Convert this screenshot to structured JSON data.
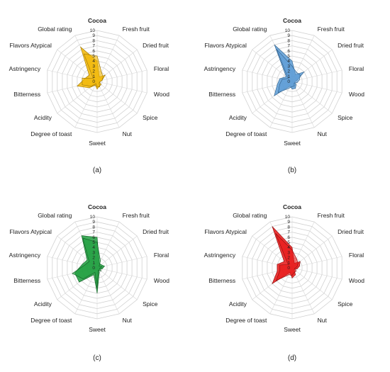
{
  "attributes": [
    "Cocoa",
    "Fresh fruit",
    "Dried fruit",
    "Floral",
    "Wood",
    "Spice",
    "Nut",
    "Sweet",
    "Degree  of toast",
    "Acidity",
    "Bitterness",
    "Astringency",
    "Flavors Atypical",
    "Global  rating"
  ],
  "ticks": [
    "0",
    "1",
    "2",
    "3",
    "4",
    "5",
    "6",
    "7",
    "8",
    "9",
    "10"
  ],
  "chart_data": [
    {
      "type": "radar",
      "panel_label": "(a)",
      "color": "#F2B705",
      "edge_color": "#9c7300",
      "rmax": 10,
      "categories": [
        "Cocoa",
        "Fresh fruit",
        "Dried fruit",
        "Floral",
        "Wood",
        "Spice",
        "Nut",
        "Sweet",
        "Degree  of toast",
        "Acidity",
        "Bitterness",
        "Astringency",
        "Flavors Atypical",
        "Global  rating"
      ],
      "series": [
        {
          "values": [
            4,
            1,
            2,
            1,
            0.5,
            1,
            1,
            1.5,
            0.8,
            2,
            4,
            2.5,
            2,
            7.5
          ]
        },
        {
          "values": [
            5,
            2,
            1.5,
            1,
            0.5,
            0.5,
            1.2,
            1,
            0.5,
            1.5,
            3,
            3,
            1,
            6
          ]
        }
      ]
    },
    {
      "type": "radar",
      "panel_label": "(b)",
      "color": "#5B9BD5",
      "edge_color": "#2f5f8a",
      "rmax": 10,
      "categories": [
        "Cocoa",
        "Fresh fruit",
        "Dried fruit",
        "Floral",
        "Wood",
        "Spice",
        "Nut",
        "Sweet",
        "Degree  of toast",
        "Acidity",
        "Bitterness",
        "Astringency",
        "Flavors Atypical",
        "Global  rating"
      ],
      "series": [
        {
          "values": [
            4,
            1.5,
            3,
            1,
            0.5,
            1,
            1.5,
            1.5,
            1,
            4.5,
            3,
            2.5,
            1.5,
            8
          ]
        },
        {
          "values": [
            3,
            2,
            2,
            1.5,
            1,
            0.5,
            1,
            1,
            1.5,
            3.5,
            2.5,
            2,
            1,
            7
          ]
        }
      ]
    },
    {
      "type": "radar",
      "panel_label": "(c)",
      "color": "#1E9E3E",
      "edge_color": "#0f5e23",
      "rmax": 10,
      "categories": [
        "Cocoa",
        "Fresh fruit",
        "Dried fruit",
        "Floral",
        "Wood",
        "Spice",
        "Nut",
        "Sweet",
        "Degree  of toast",
        "Acidity",
        "Bitterness",
        "Astringency",
        "Flavors Atypical",
        "Global  rating"
      ],
      "series": [
        {
          "values": [
            6,
            1,
            1,
            1.5,
            1,
            0.5,
            1,
            5,
            1.5,
            4.5,
            4.5,
            3,
            2.5,
            7
          ]
        },
        {
          "values": [
            5,
            1.5,
            0.5,
            1,
            0.5,
            1,
            0.5,
            4,
            1,
            3.5,
            5,
            2.5,
            2,
            6.5
          ]
        }
      ]
    },
    {
      "type": "radar",
      "panel_label": "(d)",
      "color": "#E81515",
      "edge_color": "#8c0b0b",
      "rmax": 10,
      "categories": [
        "Cocoa",
        "Fresh fruit",
        "Dried fruit",
        "Floral",
        "Wood",
        "Spice",
        "Nut",
        "Sweet",
        "Degree  of toast",
        "Acidity",
        "Bitterness",
        "Astringency",
        "Flavors Atypical",
        "Global  rating"
      ],
      "series": [
        {
          "values": [
            4,
            1,
            2,
            1.5,
            1,
            0.5,
            1.5,
            2,
            1,
            5,
            3,
            3,
            2,
            9
          ]
        },
        {
          "values": [
            3.5,
            2,
            1.5,
            1,
            0.5,
            1,
            1,
            1.5,
            1.5,
            4,
            2.5,
            2.5,
            1,
            7.5
          ]
        }
      ]
    }
  ]
}
